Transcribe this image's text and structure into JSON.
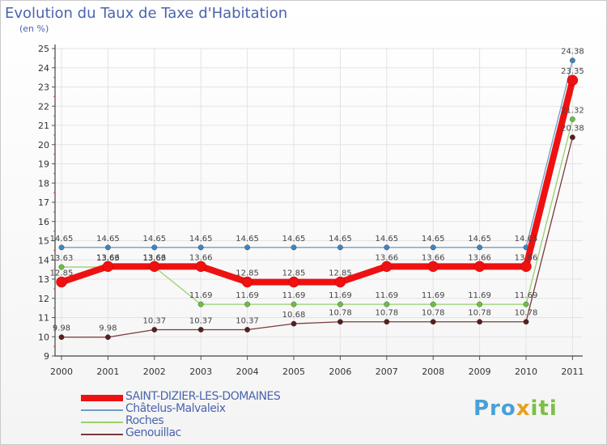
{
  "title": "Evolution du Taux de Taxe d'Habitation",
  "subtitle": "(en %)",
  "logo": {
    "p": "Pro",
    "x": "x",
    "i": "iti"
  },
  "chart_data": {
    "type": "line",
    "title": "Evolution du Taux de Taxe d'Habitation",
    "ylabel": "(en %)",
    "xlabel": "",
    "ylim": [
      9,
      25
    ],
    "yticks": [
      "9",
      "10",
      "11",
      "12",
      "13",
      "14",
      "15",
      "16",
      "17",
      "18",
      "19",
      "20",
      "21",
      "22",
      "23",
      "24",
      "25"
    ],
    "categories": [
      "2000",
      "2001",
      "2002",
      "2003",
      "2004",
      "2005",
      "2006",
      "2007",
      "2008",
      "2009",
      "2010",
      "2011"
    ],
    "series": [
      {
        "name": "Châtelus-Malvaleix",
        "color": "#6f9ec6",
        "marker": "#3c86c4",
        "values": [
          14.65,
          14.65,
          14.65,
          14.65,
          14.65,
          14.65,
          14.65,
          14.65,
          14.65,
          14.65,
          14.65,
          24.38
        ],
        "labels": [
          "14.65",
          "14.65",
          "14.65",
          "14.65",
          "14.65",
          "14.65",
          "14.65",
          "14.65",
          "14.65",
          "14.65",
          "14.65",
          "24.38"
        ]
      },
      {
        "name": "Roches",
        "color": "#9ad06c",
        "marker": "#6cc040",
        "values": [
          13.63,
          13.63,
          13.63,
          11.69,
          11.69,
          11.69,
          11.69,
          11.69,
          11.69,
          11.69,
          11.69,
          21.32
        ],
        "labels": [
          "13.63",
          "13.63",
          "13.63",
          "11.69",
          "11.69",
          "11.69",
          "11.69",
          "11.69",
          "11.69",
          "11.69",
          "11.69",
          "21.32"
        ]
      },
      {
        "name": "Genouillac",
        "color": "#7a3a3a",
        "marker": "#5a1e1e",
        "values": [
          9.98,
          9.98,
          10.37,
          10.37,
          10.37,
          10.68,
          10.78,
          10.78,
          10.78,
          10.78,
          10.78,
          20.38
        ],
        "labels": [
          "9.98",
          "9.98",
          "10.37",
          "10.37",
          "10.37",
          "10.68",
          "10.78",
          "10.78",
          "10.78",
          "10.78",
          "10.78",
          "20.38"
        ]
      },
      {
        "name": "SAINT-DIZIER-LES-DOMAINES",
        "color": "#ee1111",
        "marker": "#ee1111",
        "values": [
          12.85,
          13.66,
          13.66,
          13.66,
          12.85,
          12.85,
          12.85,
          13.66,
          13.66,
          13.66,
          13.66,
          23.35
        ],
        "labels": [
          "12.85",
          "13.66",
          "13.66",
          "13.66",
          "12.85",
          "12.85",
          "12.85",
          "13.66",
          "13.66",
          "13.66",
          "13.66",
          "23.35"
        ]
      }
    ],
    "legend": [
      "SAINT-DIZIER-LES-DOMAINES",
      "Châtelus-Malvaleix",
      "Roches",
      "Genouillac"
    ]
  }
}
